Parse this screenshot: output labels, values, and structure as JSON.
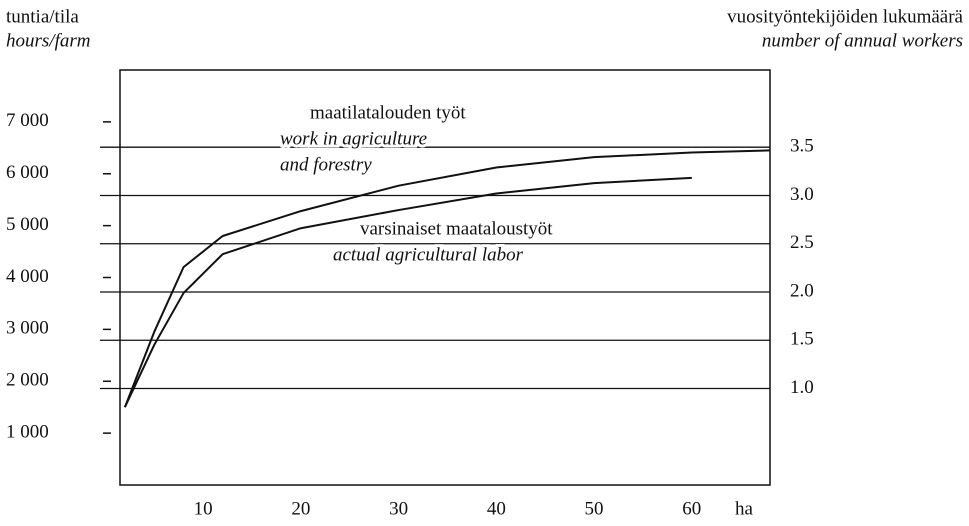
{
  "chart_data": {
    "type": "line",
    "y_label": [
      "tuntia/tila",
      "hours/farm"
    ],
    "y2_label": [
      "vuosityöntekijöiden lukumäärä",
      "number of annual workers"
    ],
    "x_label": "ha",
    "annotations": [
      "maatilatalouden työt",
      "work in agriculture",
      "and forestry",
      "varsinaiset maataloustyöt",
      "actual agricultural labor"
    ],
    "x": [
      2,
      5,
      8,
      12,
      20,
      30,
      40,
      50,
      60,
      68
    ],
    "series": [
      {
        "color": "#111111",
        "values": [
          1500,
          2950,
          4200,
          4800,
          5280,
          5770,
          6120,
          6320,
          6410,
          6450
        ]
      },
      {
        "color": "#111111",
        "values": [
          1500,
          2700,
          3700,
          4450,
          4950,
          5300,
          5620,
          5820,
          5920,
          null
        ]
      }
    ],
    "xlim": [
      1.5,
      68
    ],
    "xticks": [
      10,
      20,
      30,
      40,
      50,
      60
    ],
    "ylim": [
      0,
      8000
    ],
    "yticks": [
      {
        "value": 1000,
        "label": "1 000"
      },
      {
        "value": 2000,
        "label": "2 000"
      },
      {
        "value": 3000,
        "label": "3 000"
      },
      {
        "value": 4000,
        "label": "4 000"
      },
      {
        "value": 5000,
        "label": "5 000"
      },
      {
        "value": 6000,
        "label": "6 000"
      },
      {
        "value": 7000,
        "label": "7 000"
      }
    ],
    "y2lim": [
      0,
      4.3
    ],
    "y2ticks": [
      {
        "value": 1,
        "label": "1.0"
      },
      1.5,
      {
        "value": 2,
        "label": "2.0"
      },
      2.5,
      {
        "value": 3,
        "label": "3.0"
      },
      3.5
    ],
    "grid": true
  }
}
